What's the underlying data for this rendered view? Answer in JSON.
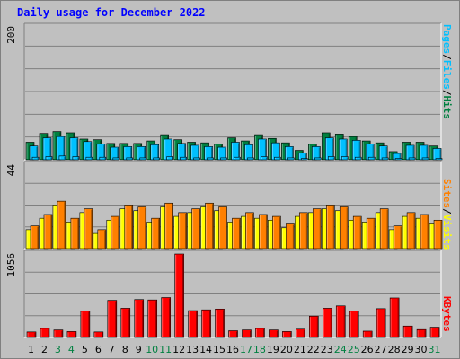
{
  "title": "Daily usage for December 2022",
  "colors": {
    "hits": "#008040",
    "files": "#00C0FF",
    "pages": "#00C0FF",
    "visits": "#FFFF00",
    "sites": "#FF8000",
    "kbytes": "#FF0000",
    "weekend_tick": "#008040",
    "weekday_tick": "#000000",
    "title": "#0000FF"
  },
  "chart_data": [
    {
      "type": "bar",
      "panel": "hits-files-pages",
      "y_max_label": "200",
      "right_label_parts": [
        "Pages",
        "/",
        "Files",
        "/",
        "Hits"
      ],
      "categories": [
        "1",
        "2",
        "3",
        "4",
        "5",
        "6",
        "7",
        "8",
        "9",
        "10",
        "11",
        "12",
        "13",
        "14",
        "15",
        "16",
        "17",
        "18",
        "19",
        "20",
        "21",
        "22",
        "23",
        "24",
        "25",
        "26",
        "27",
        "28",
        "29",
        "30",
        "31"
      ],
      "weekend_days": [
        3,
        4,
        10,
        11,
        17,
        18,
        24,
        25,
        31
      ],
      "ylim": [
        0,
        212
      ],
      "series": [
        {
          "name": "Hits",
          "values": [
            28,
            42,
            45,
            43,
            33,
            32,
            26,
            26,
            26,
            30,
            40,
            32,
            28,
            27,
            25,
            35,
            30,
            40,
            34,
            27,
            15,
            25,
            43,
            41,
            37,
            30,
            27,
            13,
            28,
            28,
            22
          ]
        },
        {
          "name": "Files",
          "values": [
            22,
            35,
            37,
            35,
            29,
            25,
            20,
            21,
            21,
            24,
            33,
            26,
            23,
            21,
            20,
            28,
            24,
            33,
            27,
            21,
            11,
            21,
            35,
            33,
            31,
            25,
            22,
            10,
            23,
            23,
            18
          ]
        },
        {
          "name": "Pages",
          "values": [
            4,
            5,
            6,
            5,
            4,
            4,
            3,
            3,
            3,
            3,
            5,
            4,
            3,
            3,
            3,
            4,
            3,
            5,
            4,
            3,
            2,
            3,
            5,
            5,
            4,
            4,
            3,
            2,
            3,
            3,
            2
          ]
        }
      ]
    },
    {
      "type": "bar",
      "panel": "visits-sites",
      "y_max_label": "44",
      "right_label_parts": [
        "Sites",
        "/",
        "Visits"
      ],
      "categories": [
        "1",
        "2",
        "3",
        "4",
        "5",
        "6",
        "7",
        "8",
        "9",
        "10",
        "11",
        "12",
        "13",
        "14",
        "15",
        "16",
        "17",
        "18",
        "19",
        "20",
        "21",
        "22",
        "23",
        "24",
        "25",
        "26",
        "27",
        "28",
        "29",
        "30",
        "31"
      ],
      "ylim": [
        0,
        44
      ],
      "series": [
        {
          "name": "Visits",
          "values": [
            10,
            16,
            23,
            14,
            19,
            8,
            15,
            21,
            20,
            14,
            22,
            17,
            19,
            22,
            20,
            14,
            17,
            16,
            15,
            11,
            17,
            19,
            21,
            20,
            15,
            14,
            19,
            10,
            17,
            16,
            13
          ]
        },
        {
          "name": "Sites",
          "values": [
            12,
            18,
            25,
            16,
            21,
            10,
            17,
            23,
            22,
            16,
            24,
            19,
            21,
            24,
            22,
            16,
            19,
            18,
            17,
            13,
            19,
            21,
            23,
            22,
            17,
            16,
            21,
            12,
            19,
            18,
            15
          ]
        }
      ]
    },
    {
      "type": "bar",
      "panel": "kbytes",
      "y_max_label": "1056",
      "right_label_parts": [
        "KBytes"
      ],
      "categories": [
        "1",
        "2",
        "3",
        "4",
        "5",
        "6",
        "7",
        "8",
        "9",
        "10",
        "11",
        "12",
        "13",
        "14",
        "15",
        "16",
        "17",
        "18",
        "19",
        "20",
        "21",
        "22",
        "23",
        "24",
        "25",
        "26",
        "27",
        "28",
        "29",
        "30",
        "31"
      ],
      "ylim": [
        0,
        1056
      ],
      "series": [
        {
          "name": "KBytes",
          "values": [
            70,
            115,
            95,
            75,
            335,
            70,
            470,
            370,
            480,
            475,
            505,
            1056,
            340,
            350,
            360,
            85,
            95,
            115,
            95,
            75,
            105,
            270,
            370,
            400,
            335,
            80,
            365,
            500,
            145,
            100,
            130
          ]
        }
      ]
    }
  ]
}
